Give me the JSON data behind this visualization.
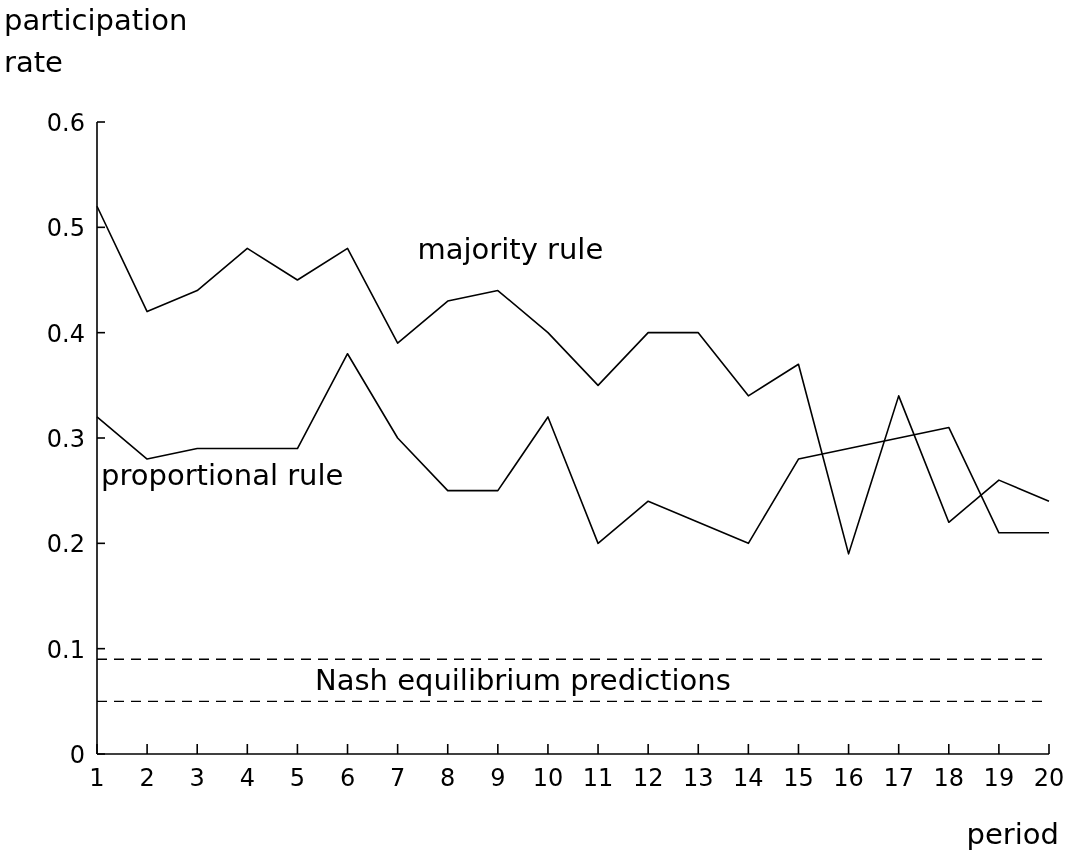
{
  "chart_data": {
    "type": "line",
    "xlabel": "period",
    "ylabel": "participation rate",
    "x": [
      1,
      2,
      3,
      4,
      5,
      6,
      7,
      8,
      9,
      10,
      11,
      12,
      13,
      14,
      15,
      16,
      17,
      18,
      19,
      20
    ],
    "series": [
      {
        "name": "majority rule",
        "color": "#000000",
        "values": [
          0.52,
          0.42,
          0.44,
          0.48,
          0.45,
          0.48,
          0.39,
          0.43,
          0.44,
          0.4,
          0.35,
          0.4,
          0.4,
          0.34,
          0.37,
          0.19,
          0.34,
          0.22,
          0.26,
          0.24
        ]
      },
      {
        "name": "proportional rule",
        "color": "#000000",
        "values": [
          0.32,
          0.28,
          0.29,
          0.29,
          0.29,
          0.38,
          0.3,
          0.25,
          0.25,
          0.32,
          0.2,
          0.24,
          0.22,
          0.2,
          0.28,
          0.29,
          0.3,
          0.31,
          0.21,
          0.21
        ]
      }
    ],
    "xlim": [
      1,
      20
    ],
    "xticks": [
      1,
      2,
      3,
      4,
      5,
      6,
      7,
      8,
      9,
      10,
      11,
      12,
      13,
      14,
      15,
      16,
      17,
      18,
      19,
      20
    ],
    "ylim": [
      0,
      0.6
    ],
    "yticks": [
      0,
      0.1,
      0.2,
      0.3,
      0.4,
      0.5,
      0.6
    ],
    "ref_lines": [
      {
        "axis": "y",
        "value": 0.09,
        "line_style": "dashed"
      },
      {
        "axis": "y",
        "value": 0.05,
        "line_style": "dashed"
      }
    ],
    "annotations": [
      "Nash equilibrium predictions"
    ],
    "grid": false,
    "legend": false,
    "marker": "none",
    "line_style": "solid"
  }
}
